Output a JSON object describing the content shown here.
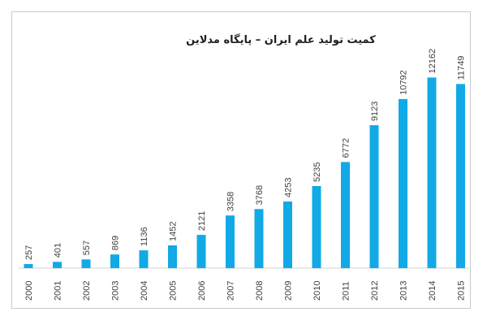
{
  "chart_data": {
    "type": "bar",
    "title": "کمیت تولید علم ایران – پایگاه مدلاین",
    "categories": [
      "2000",
      "2001",
      "2002",
      "2003",
      "2004",
      "2005",
      "2006",
      "2007",
      "2008",
      "2009",
      "2010",
      "2011",
      "2012",
      "2013",
      "2014",
      "2015"
    ],
    "values": [
      257,
      401,
      557,
      869,
      1136,
      1452,
      2121,
      3358,
      3768,
      4253,
      5235,
      6772,
      9123,
      10792,
      12162,
      11749
    ],
    "xlabel": "",
    "ylabel": "",
    "ylim": [
      0,
      14000
    ],
    "grid": false,
    "legend": "none",
    "bar_color": "#11a9e6",
    "axis_color": "#d0d0d0"
  }
}
